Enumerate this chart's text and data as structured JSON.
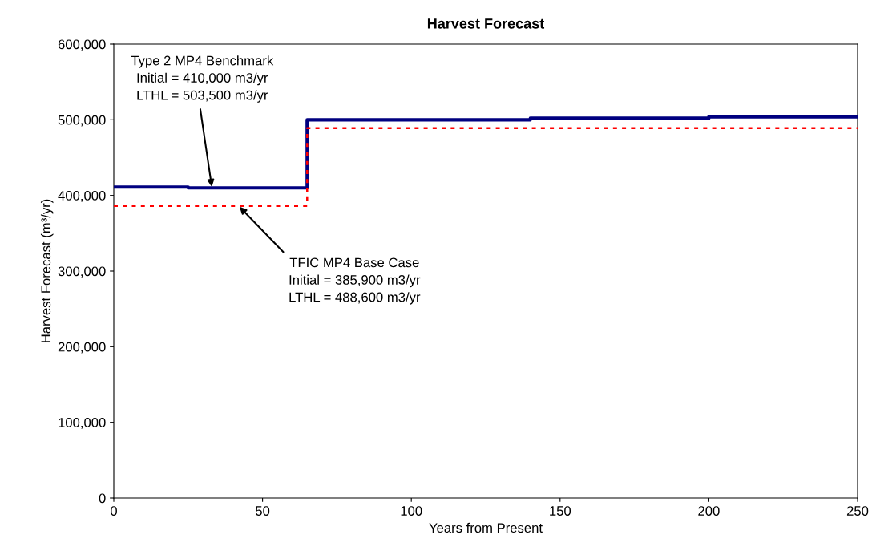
{
  "chart_data": {
    "type": "step",
    "title": "Harvest Forecast",
    "xlabel": "Years from Present",
    "ylabel": "Harvest Forecast (m³/yr)",
    "series": [
      {
        "color": "#000080",
        "line_style": "solid",
        "x": [
          0,
          25,
          65,
          140,
          200,
          250
        ],
        "values": [
          411000,
          410000,
          500000,
          502000,
          504000,
          504000
        ]
      },
      {
        "color": "#ff0000",
        "line_style": "dotted",
        "x": [
          0,
          65,
          250
        ],
        "values": [
          386000,
          489000,
          489000
        ]
      }
    ],
    "annotations": [
      {
        "text": "Type 2 MP4 Benchmark\nInitial = 410,000 m3/yr\nLTHL = 503,500 m3/yr",
        "x": 33,
        "y": 410000
      },
      {
        "text": "TFIC MP4 Base Case\nInitial = 385,900 m3/yr\nLTHL = 488,600 m3/yr",
        "x": 42,
        "y": 386000
      }
    ],
    "xlim": [
      0,
      250
    ],
    "xticks": [
      0,
      50,
      100,
      150,
      200,
      250
    ],
    "ylim": [
      0,
      600000
    ],
    "yticks": [
      {
        "value": 0,
        "label": "0"
      },
      {
        "value": 100000,
        "label": "100,000"
      },
      {
        "value": 200000,
        "label": "200,000"
      },
      {
        "value": 300000,
        "label": "300,000"
      },
      {
        "value": 400000,
        "label": "400,000"
      },
      {
        "value": 500000,
        "label": "500,000"
      },
      {
        "value": 600000,
        "label": "600,000"
      }
    ],
    "grid": false,
    "legend": false
  }
}
